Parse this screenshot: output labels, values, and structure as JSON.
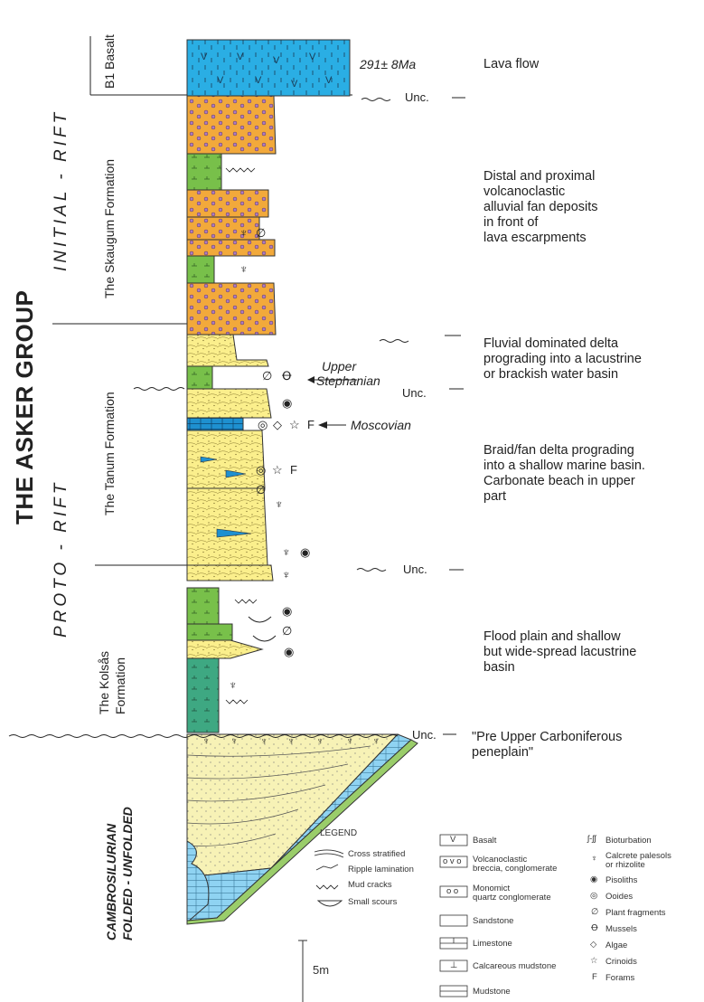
{
  "group_title": "THE ASKER GROUP",
  "phases": {
    "initial_rift": "INITIAL - RIFT",
    "proto_rift": "PROTO - RIFT",
    "basement": [
      "CAMBROSILURIAN",
      "FOLDED - UNFOLDED"
    ]
  },
  "formations": {
    "b1_basalt": "B1 Basalt",
    "skaugum": "The Skaugum Formation",
    "tanum": "The Tanum Formation",
    "kolsas": [
      "The Kolsås",
      "Formation"
    ]
  },
  "ages": {
    "radiometric": "291± 8Ma",
    "upper_stephanian": [
      "Upper",
      "Stephanian"
    ],
    "moscovian": "Moscovian"
  },
  "unconformity_label": "Unc.",
  "descriptions": {
    "lava": "Lava flow",
    "skaugum": [
      "Distal and proximal",
      "volcanoclastic",
      "alluvial fan deposits",
      "in front of",
      "lava escarpments"
    ],
    "tanum_upper": [
      "Fluvial dominated delta",
      "prograding into a lacustrine",
      "or brackish water basin"
    ],
    "tanum_lower": [
      "Braid/fan delta prograding",
      "into a shallow marine basin.",
      "Carbonate beach in upper",
      "part"
    ],
    "kolsas": [
      "Flood plain and shallow",
      "but wide-spread lacustrine",
      "basin"
    ],
    "peneplain": [
      "\"Pre Upper Carboniferous",
      "peneplain\""
    ]
  },
  "legend": {
    "title": "LEGEND",
    "structures": [
      "Cross stratified",
      "Ripple lamination",
      "Mud cracks",
      "Small scours"
    ],
    "lithologies": [
      [
        "Basalt"
      ],
      [
        "Volcanoclastic",
        "breccia, conglomerate"
      ],
      [
        "Monomict",
        "quartz conglomerate"
      ],
      [
        "Sandstone"
      ],
      [
        "Limestone"
      ],
      [
        "Calcareous mudstone"
      ],
      [
        "Mudstone"
      ]
    ],
    "lithology_symbols": [
      "V",
      "o v o",
      "o o",
      "",
      "",
      "⊥",
      ""
    ],
    "fossils": [
      [
        "Bioturbation"
      ],
      [
        "Calcrete palesols",
        "or rhizolite"
      ],
      [
        "Pisoliths"
      ],
      [
        "Ooides"
      ],
      [
        "Plant fragments"
      ],
      [
        "Mussels"
      ],
      [
        "Algae"
      ],
      [
        "Crinoids"
      ],
      [
        "Forams"
      ]
    ],
    "fossil_symbols": [
      "ʃ-ʃʃ",
      "",
      "◉",
      "◎",
      "∅",
      "Ꝋ",
      "◇",
      "☆",
      "F"
    ],
    "scale": "5m"
  },
  "colors": {
    "basalt": "#2aaee4",
    "volcanic": "#f2a93b",
    "mudstone": "#78c04a",
    "sandstone": "#fbef8c",
    "limestone": "#1e90d0",
    "kolsas": "#3ea882",
    "basement_sand": "#f7f2b6",
    "basement_lime": "#8fd3f2"
  }
}
